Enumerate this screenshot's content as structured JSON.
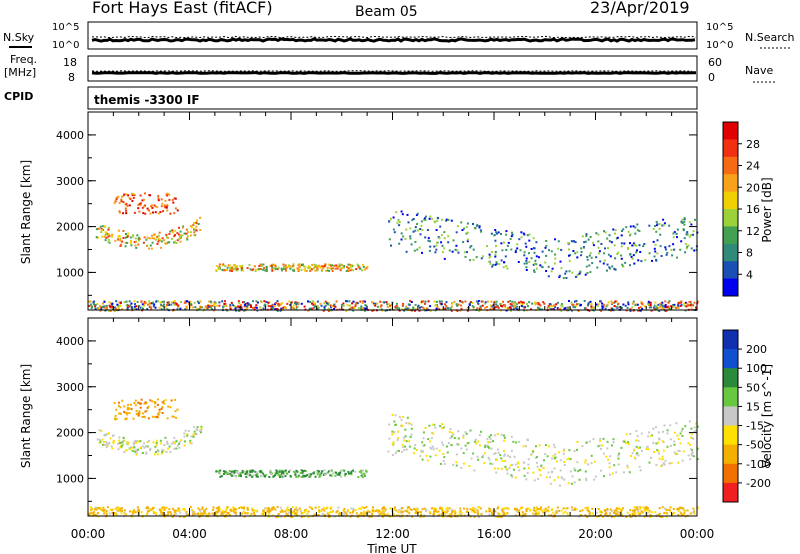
{
  "header": {
    "station": "Fort Hays East (fitACF)",
    "beam": "Beam 05",
    "date": "23/Apr/2019"
  },
  "mini_panels": {
    "nsky_label": "N.Sky",
    "nsky_ticks": [
      "10^5",
      "10^0"
    ],
    "nsearch_label": "N.Search",
    "nsearch_ticks": [
      "10^5",
      "10^0"
    ],
    "freq_label_1": "Freq.",
    "freq_label_2": "[MHz]",
    "freq_ticks": [
      "18",
      "8"
    ],
    "nave_label": "Nave",
    "nave_ticks": [
      "60",
      "0"
    ],
    "cpid_label": "CPID",
    "cpid_text": "themis -3300 IF"
  },
  "colors": {
    "power_scale": [
      "#0000ee",
      "#1a50b4",
      "#2f8a7a",
      "#42a050",
      "#9bd23a",
      "#f0d000",
      "#f7a21a",
      "#f56a12",
      "#f03010",
      "#e00000"
    ],
    "velocity_scale": [
      "#1030b0",
      "#1050d0",
      "#2a8a3a",
      "#68c840",
      "#c8c8c8",
      "#ffe000",
      "#f4b000",
      "#f07000",
      "#f02020"
    ]
  },
  "chart_data": [
    {
      "type": "heatmap",
      "title": "",
      "ylabel": "Slant Range [km]",
      "xlabel": "",
      "ylim": [
        180,
        4500
      ],
      "y_ticks": [
        "1000",
        "2000",
        "3000",
        "4000"
      ],
      "colorbar_label": "Power [dB]",
      "colorbar_ticks": [
        "4",
        "8",
        "12",
        "16",
        "20",
        "24",
        "28"
      ],
      "colorbar_range": [
        0,
        31
      ],
      "echo_regions": [
        {
          "x": [
            0.3,
            4.5
          ],
          "y": [
            1500,
            2100
          ],
          "level": "mid",
          "note_value": 16
        },
        {
          "x": [
            1.0,
            3.5
          ],
          "y": [
            2300,
            2750
          ],
          "level": "high",
          "note_value": 22
        },
        {
          "x": [
            5.0,
            11.0
          ],
          "y": [
            1050,
            1200
          ],
          "level": "mid",
          "note_value": 15
        },
        {
          "x": [
            11.8,
            24.0
          ],
          "y": [
            900,
            2700
          ],
          "level": "low",
          "note_value": 8
        },
        {
          "x": [
            0.0,
            24.0
          ],
          "y": [
            180,
            400
          ],
          "level": "mixed",
          "note_value": 12
        }
      ]
    },
    {
      "type": "heatmap",
      "title": "",
      "ylabel": "Slant Range [km]",
      "xlabel": "Time UT",
      "ylim": [
        180,
        4500
      ],
      "y_ticks": [
        "1000",
        "2000",
        "3000",
        "4000"
      ],
      "x_ticks": [
        "00:00",
        "04:00",
        "08:00",
        "12:00",
        "16:00",
        "20:00",
        "00:00"
      ],
      "colorbar_label": "Velocity [m s^-1]",
      "colorbar_ticks": [
        "200",
        "100",
        "50",
        "15",
        "-15",
        "-50",
        "-100",
        "-200"
      ],
      "colorbar_range": [
        -250,
        250
      ],
      "echo_regions": [
        {
          "x": [
            0.3,
            4.5
          ],
          "y": [
            1500,
            2100
          ],
          "note_value": 0
        },
        {
          "x": [
            1.0,
            3.5
          ],
          "y": [
            2300,
            2750
          ],
          "note_value": -60
        },
        {
          "x": [
            5.0,
            11.0
          ],
          "y": [
            1050,
            1200
          ],
          "note_value": 30
        },
        {
          "x": [
            11.8,
            24.0
          ],
          "y": [
            900,
            2700
          ],
          "note_value": 0
        },
        {
          "x": [
            0.0,
            24.0
          ],
          "y": [
            180,
            400
          ],
          "note_value": -40
        }
      ]
    }
  ]
}
